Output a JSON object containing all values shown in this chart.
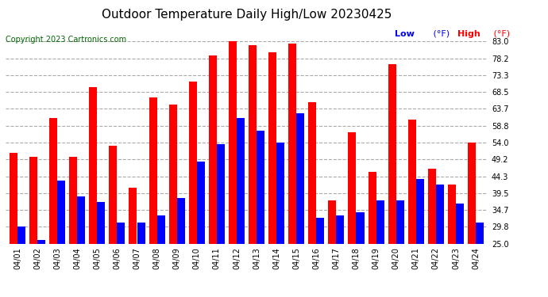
{
  "title": "Outdoor Temperature Daily High/Low 20230425",
  "copyright": "Copyright 2023 Cartronics.com",
  "dates": [
    "04/01",
    "04/02",
    "04/03",
    "04/04",
    "04/05",
    "04/06",
    "04/07",
    "04/08",
    "04/09",
    "04/10",
    "04/11",
    "04/12",
    "04/13",
    "04/14",
    "04/15",
    "04/16",
    "04/17",
    "04/18",
    "04/19",
    "04/20",
    "04/21",
    "04/22",
    "04/23",
    "04/24"
  ],
  "high": [
    51.0,
    50.0,
    61.0,
    50.0,
    70.0,
    53.0,
    41.0,
    67.0,
    65.0,
    71.5,
    79.0,
    83.0,
    82.0,
    80.0,
    82.5,
    65.5,
    37.5,
    57.0,
    45.5,
    76.5,
    60.5,
    46.5,
    42.0,
    54.0
  ],
  "low": [
    30.0,
    26.0,
    43.0,
    38.5,
    37.0,
    31.0,
    31.0,
    33.0,
    38.0,
    48.5,
    53.5,
    61.0,
    57.5,
    54.0,
    62.5,
    32.5,
    33.0,
    34.0,
    37.5,
    37.5,
    43.5,
    42.0,
    36.5,
    31.0
  ],
  "ylim": [
    25.0,
    83.0
  ],
  "yticks": [
    25.0,
    29.8,
    34.7,
    39.5,
    44.3,
    49.2,
    54.0,
    58.8,
    63.7,
    68.5,
    73.3,
    78.2,
    83.0
  ],
  "color_high": "#ff0000",
  "color_low": "#0000ff",
  "bg_color": "#ffffff",
  "grid_color": "#aaaaaa",
  "title_fontsize": 11,
  "copyright_fontsize": 7,
  "legend_fontsize": 8,
  "tick_fontsize": 7,
  "bar_width": 0.4,
  "ymin": 25.0
}
